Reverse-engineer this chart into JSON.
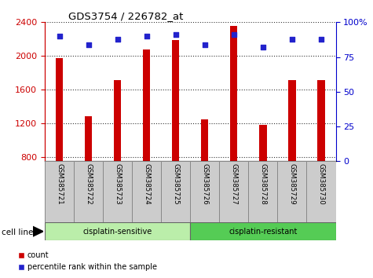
{
  "title": "GDS3754 / 226782_at",
  "samples": [
    "GSM385721",
    "GSM385722",
    "GSM385723",
    "GSM385724",
    "GSM385725",
    "GSM385726",
    "GSM385727",
    "GSM385728",
    "GSM385729",
    "GSM385730"
  ],
  "counts": [
    1970,
    1280,
    1710,
    2080,
    2190,
    1250,
    2360,
    1180,
    1710,
    1710
  ],
  "percentile_ranks": [
    90,
    84,
    88,
    90,
    91,
    84,
    91,
    82,
    88,
    88
  ],
  "y_min": 750,
  "y_max": 2400,
  "y_ticks": [
    800,
    1200,
    1600,
    2000,
    2400
  ],
  "right_y_ticks": [
    0,
    25,
    50,
    75,
    100
  ],
  "bar_color": "#cc0000",
  "dot_color": "#2222cc",
  "sensitive_label": "cisplatin-sensitive",
  "resistant_label": "cisplatin-resistant",
  "sensitive_count": 5,
  "cell_line_label": "cell line",
  "legend_count": "count",
  "legend_percentile": "percentile rank within the sample",
  "sensitive_color": "#bbeeaa",
  "resistant_color": "#55cc55",
  "left_axis_color": "#cc0000",
  "right_axis_color": "#0000cc",
  "bar_width": 0.25,
  "label_box_color": "#cccccc",
  "grid_color": "#333333"
}
